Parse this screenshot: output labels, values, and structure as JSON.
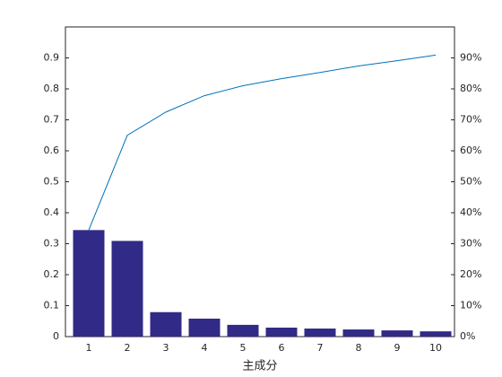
{
  "chart_data": {
    "type": "pareto",
    "xlabel": "主成分",
    "categories": [
      "1",
      "2",
      "3",
      "4",
      "5",
      "6",
      "7",
      "8",
      "9",
      "10"
    ],
    "series": [
      {
        "type": "bar",
        "color": "#312a86",
        "values": [
          0.344,
          0.309,
          0.079,
          0.058,
          0.038,
          0.029,
          0.026,
          0.023,
          0.02,
          0.017
        ]
      },
      {
        "type": "line",
        "axis": "y2",
        "color": "#0072bd",
        "values": [
          34.4,
          65,
          72.5,
          77.8,
          81,
          83.3,
          85.3,
          87.4,
          89.1,
          90.9
        ]
      }
    ],
    "ylim": [
      0,
      1
    ],
    "yticks": [
      0,
      0.1,
      0.2,
      0.3,
      0.4,
      0.5,
      0.6,
      0.7,
      0.8,
      0.9
    ],
    "y2lim": [
      0,
      100
    ],
    "y2ticks": [
      {
        "value": 0,
        "label": "0%"
      },
      {
        "value": 10,
        "label": "10%"
      },
      {
        "value": 20,
        "label": "20%"
      },
      {
        "value": 30,
        "label": "30%"
      },
      {
        "value": 40,
        "label": "40%"
      },
      {
        "value": 50,
        "label": "50%"
      },
      {
        "value": 60,
        "label": "60%"
      },
      {
        "value": 70,
        "label": "70%"
      },
      {
        "value": 80,
        "label": "80%"
      },
      {
        "value": 90,
        "label": "90%"
      }
    ]
  }
}
